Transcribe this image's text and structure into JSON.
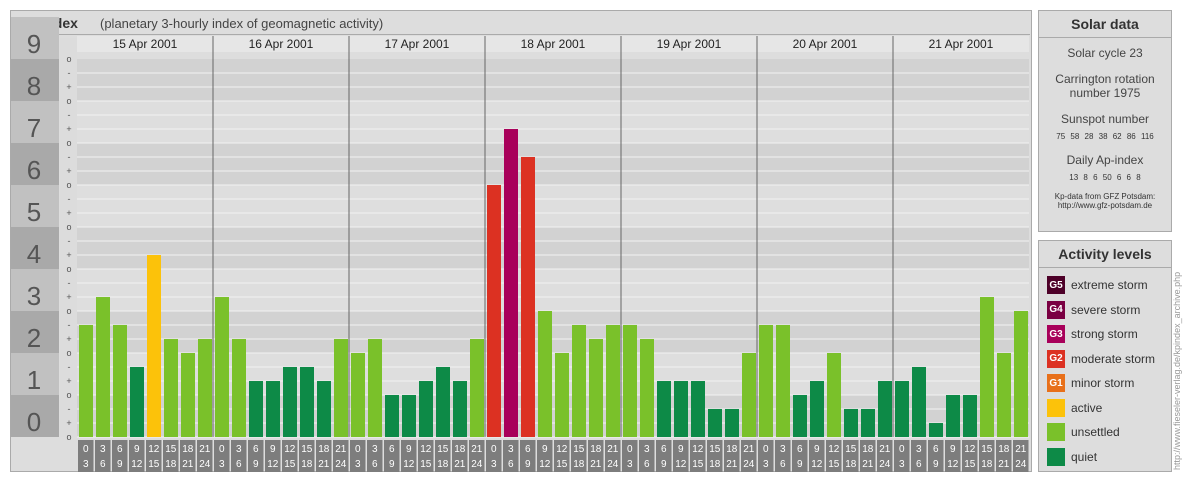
{
  "title": "Kp-index",
  "subtitle": "(planetary 3-hourly index of geomagnetic activity)",
  "chart_data": {
    "type": "bar",
    "days": [
      "15 Apr 2001",
      "16 Apr 2001",
      "17 Apr 2001",
      "18 Apr 2001",
      "19 Apr 2001",
      "20 Apr 2001",
      "21 Apr 2001"
    ],
    "y_ticks": [
      "0",
      "1",
      "2",
      "3",
      "4",
      "5",
      "6",
      "7",
      "8",
      "9"
    ],
    "y_minor_ticks": [
      "o",
      "+",
      "-",
      "o",
      "+",
      "-",
      "o",
      "+",
      "-",
      "o",
      "+",
      "-",
      "o",
      "+",
      "-",
      "o",
      "+",
      "-",
      "o",
      "+",
      "-",
      "o",
      "+",
      "-",
      "o",
      "+",
      "-",
      "o"
    ],
    "ylim": [
      0,
      9
    ],
    "interval_top": [
      "0",
      "3",
      "6",
      "9",
      "12",
      "15",
      "18",
      "21"
    ],
    "interval_bottom": [
      "3",
      "6",
      "9",
      "12",
      "15",
      "18",
      "21",
      "24"
    ],
    "values": [
      2.667,
      3.333,
      2.667,
      1.667,
      4.333,
      2.333,
      2,
      2.333,
      3.333,
      2.333,
      1.333,
      1.333,
      1.667,
      1.667,
      1.333,
      2.333,
      2,
      2.333,
      1,
      1,
      1.333,
      1.667,
      1.333,
      2.333,
      6,
      7.333,
      6.667,
      3,
      2,
      2.667,
      2.333,
      2.667,
      2.667,
      2.333,
      1.333,
      1.333,
      1.333,
      0.667,
      0.667,
      2,
      2.667,
      2.667,
      1,
      1.333,
      2,
      0.667,
      0.667,
      1.333,
      1.333,
      1.667,
      0.333,
      1,
      1,
      3.333,
      2,
      3
    ],
    "colors": {
      "quiet": "#0d8a47",
      "unsettled": "#7ac12a",
      "active": "#fcc20a",
      "minor_storm": "#e8701a",
      "moderate_storm": "#dc3122",
      "strong_storm": "#a8005a",
      "severe_storm": "#7a0042",
      "extreme_storm": "#4d0028"
    }
  },
  "solar": {
    "header": "Solar data",
    "cycle": "Solar cycle 23",
    "carrington_1": "Carrington rotation",
    "carrington_2": "number 1975",
    "sunspot_label": "Sunspot number",
    "sunspot_values": "75 58 28 38 62 86 116",
    "ap_label": "Daily Ap-index",
    "ap_values": "13 8 6 50 6 6 8",
    "source_1": "Kp-data from GFZ Potsdam:",
    "source_2": "http://www.gfz-potsdam.de"
  },
  "activity": {
    "header": "Activity levels",
    "items": [
      {
        "code": "G5",
        "label": "extreme storm",
        "color": "#4d0028"
      },
      {
        "code": "G4",
        "label": "severe storm",
        "color": "#7a0042"
      },
      {
        "code": "G3",
        "label": "strong storm",
        "color": "#a8005a"
      },
      {
        "code": "G2",
        "label": "moderate storm",
        "color": "#dc3122"
      },
      {
        "code": "G1",
        "label": "minor storm",
        "color": "#e8701a"
      },
      {
        "code": "",
        "label": "active",
        "color": "#fcc20a"
      },
      {
        "code": "",
        "label": "unsettled",
        "color": "#7ac12a"
      },
      {
        "code": "",
        "label": "quiet",
        "color": "#0d8a47"
      }
    ]
  },
  "watermark": "http://www.fieseler-verlag.de/kpindex_archive.php"
}
